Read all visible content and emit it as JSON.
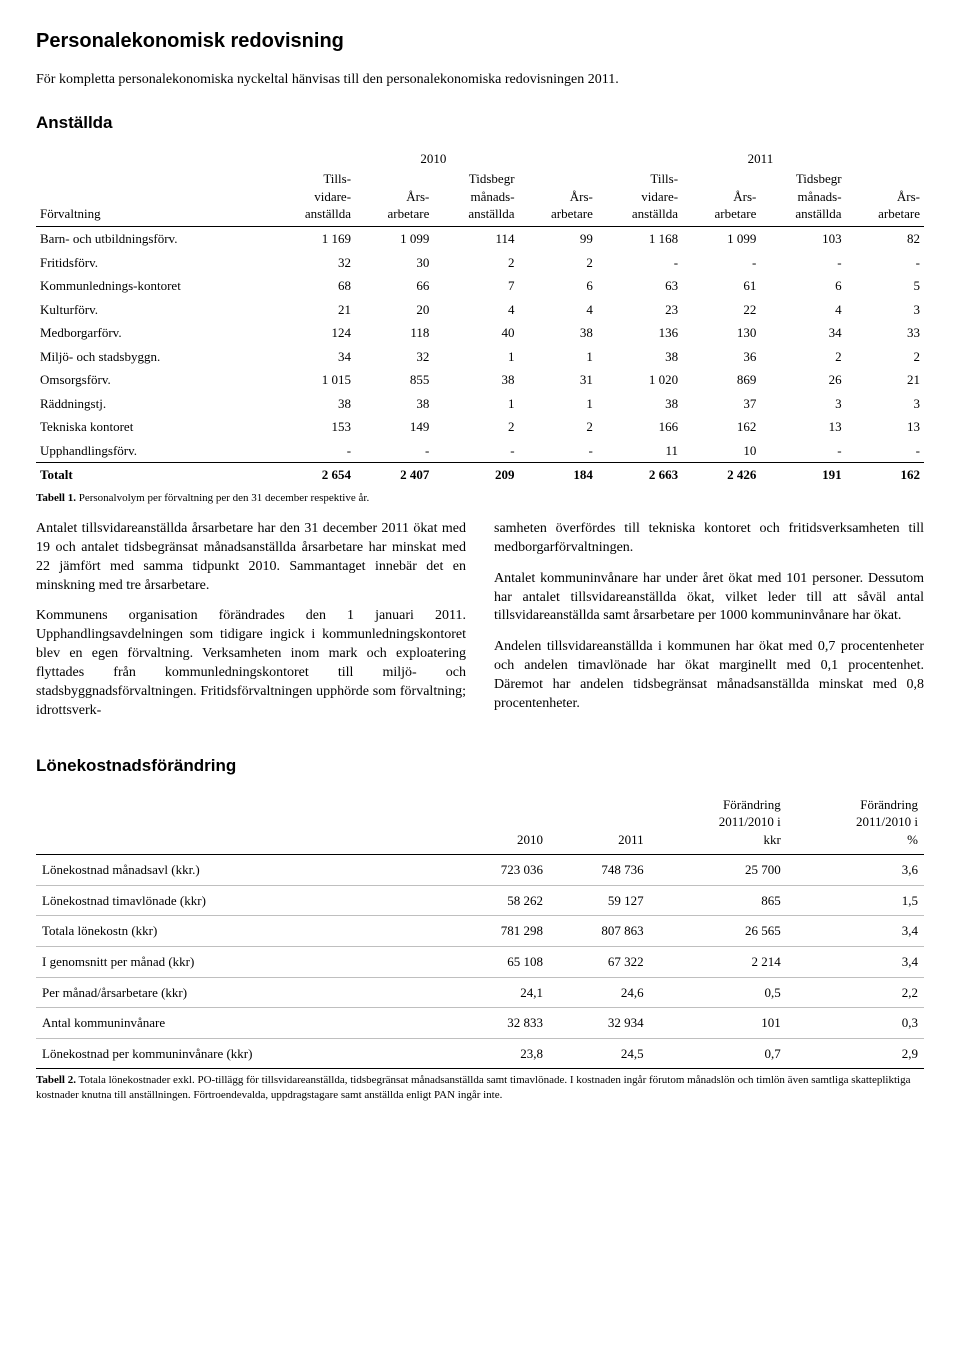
{
  "title": "Personalekonomisk redovisning",
  "intro": "För kompletta personalekonomiska nyckeltal hänvisas till den personalekonomiska redovisningen 2011.",
  "section_anst": "Anställda",
  "t1": {
    "years": [
      "2010",
      "2011"
    ],
    "head": [
      "Förvaltning",
      "Tills-vidare-anställda",
      "Års-arbetare",
      "Tidsbegr månads-anställda",
      "Års-arbetare",
      "Tills-vidare-anställda",
      "Års-arbetare",
      "Tidsbegr månads-anställda",
      "Års-arbetare"
    ],
    "rows": [
      [
        "Barn- och utbildningsförv.",
        "1 169",
        "1 099",
        "114",
        "99",
        "1 168",
        "1 099",
        "103",
        "82"
      ],
      [
        "Fritidsförv.",
        "32",
        "30",
        "2",
        "2",
        "-",
        "-",
        "-",
        "-"
      ],
      [
        "Kommunlednings-kontoret",
        "68",
        "66",
        "7",
        "6",
        "63",
        "61",
        "6",
        "5"
      ],
      [
        "Kulturförv.",
        "21",
        "20",
        "4",
        "4",
        "23",
        "22",
        "4",
        "3"
      ],
      [
        "Medborgarförv.",
        "124",
        "118",
        "40",
        "38",
        "136",
        "130",
        "34",
        "33"
      ],
      [
        "Miljö- och stadsbyggn.",
        "34",
        "32",
        "1",
        "1",
        "38",
        "36",
        "2",
        "2"
      ],
      [
        "Omsorgsförv.",
        "1 015",
        "855",
        "38",
        "31",
        "1 020",
        "869",
        "26",
        "21"
      ],
      [
        "Räddningstj.",
        "38",
        "38",
        "1",
        "1",
        "38",
        "37",
        "3",
        "3"
      ],
      [
        "Tekniska kontoret",
        "153",
        "149",
        "2",
        "2",
        "166",
        "162",
        "13",
        "13"
      ],
      [
        "Upphandlingsförv.",
        "-",
        "-",
        "-",
        "-",
        "11",
        "10",
        "-",
        "-"
      ]
    ],
    "total": [
      "Totalt",
      "2 654",
      "2 407",
      "209",
      "184",
      "2 663",
      "2 426",
      "191",
      "162"
    ]
  },
  "t1_caption_bold": "Tabell 1.",
  "t1_caption": "Personalvolym per förvaltning per den 31 december respektive år.",
  "left": [
    "Antalet tillsvidareanställda årsarbetare har den 31 december 2011 ökat med 19 och antalet tidsbegränsat månadsanställda årsarbetare har minskat med 22 jämfört med samma tidpunkt 2010. Sammantaget innebär det en minskning med tre årsarbetare.",
    "Kommunens organisation förändrades den 1 januari 2011. Upphandlingsavdelningen som tidigare ingick i kommunledningskontoret blev en egen förvaltning. Verksamheten inom mark och exploatering flyttades från kommunledningskontoret till miljö- och stadsbyggnadsförvaltningen. Fritidsförvaltningen upphörde som förvaltning; idrottsverk-"
  ],
  "right": [
    "samheten överfördes till tekniska kontoret och fritidsverksamheten till medborgarförvaltningen.",
    "Antalet kommuninvånare har under året ökat med 101 personer. Dessutom har antalet tillsvidareanställda ökat, vilket leder till att såväl antal tillsvidareanställda samt årsarbetare per 1000 kommuninvånare har ökat.",
    "Andelen tillsvidareanställda i kommunen har ökat med 0,7 procentenheter och andelen timavlönade har ökat marginellt med 0,1 procentenhet. Däremot har andelen tidsbegränsat månadsanställda minskat med 0,8 procentenheter."
  ],
  "section_lone": "Lönekostnadsförändring",
  "t2": {
    "head": [
      "",
      "2010",
      "2011",
      "Förändring 2011/2010 i kkr",
      "Förändring 2011/2010 i %"
    ],
    "rows": [
      [
        "Lönekostnad månadsavl (kkr.)",
        "723 036",
        "748 736",
        "25 700",
        "3,6"
      ],
      [
        "Lönekostnad timavlönade (kkr)",
        "58 262",
        "59 127",
        "865",
        "1,5"
      ],
      [
        "Totala lönekostn (kkr)",
        "781 298",
        "807 863",
        "26 565",
        "3,4"
      ],
      [
        "I genomsnitt per månad (kkr)",
        "65 108",
        "67 322",
        "2 214",
        "3,4"
      ],
      [
        "Per månad/årsarbetare (kkr)",
        "24,1",
        "24,6",
        "0,5",
        "2,2"
      ],
      [
        "Antal kommuninvånare",
        "32 833",
        "32 934",
        "101",
        "0,3"
      ],
      [
        "Lönekostnad per kommuninvånare (kkr)",
        "23,8",
        "24,5",
        "0,7",
        "2,9"
      ]
    ]
  },
  "t2_caption_bold": "Tabell 2.",
  "t2_caption": "Totala lönekostnader exkl. PO-tillägg för tillsvidareanställda, tidsbegränsat månadsanställda samt timavlönade. I kostnaden ingår förutom månadslön och timlön även samtliga skattepliktiga kostnader knutna till anställningen. Förtroendevalda, uppdragstagare samt anställda enligt PAN ingår inte."
}
